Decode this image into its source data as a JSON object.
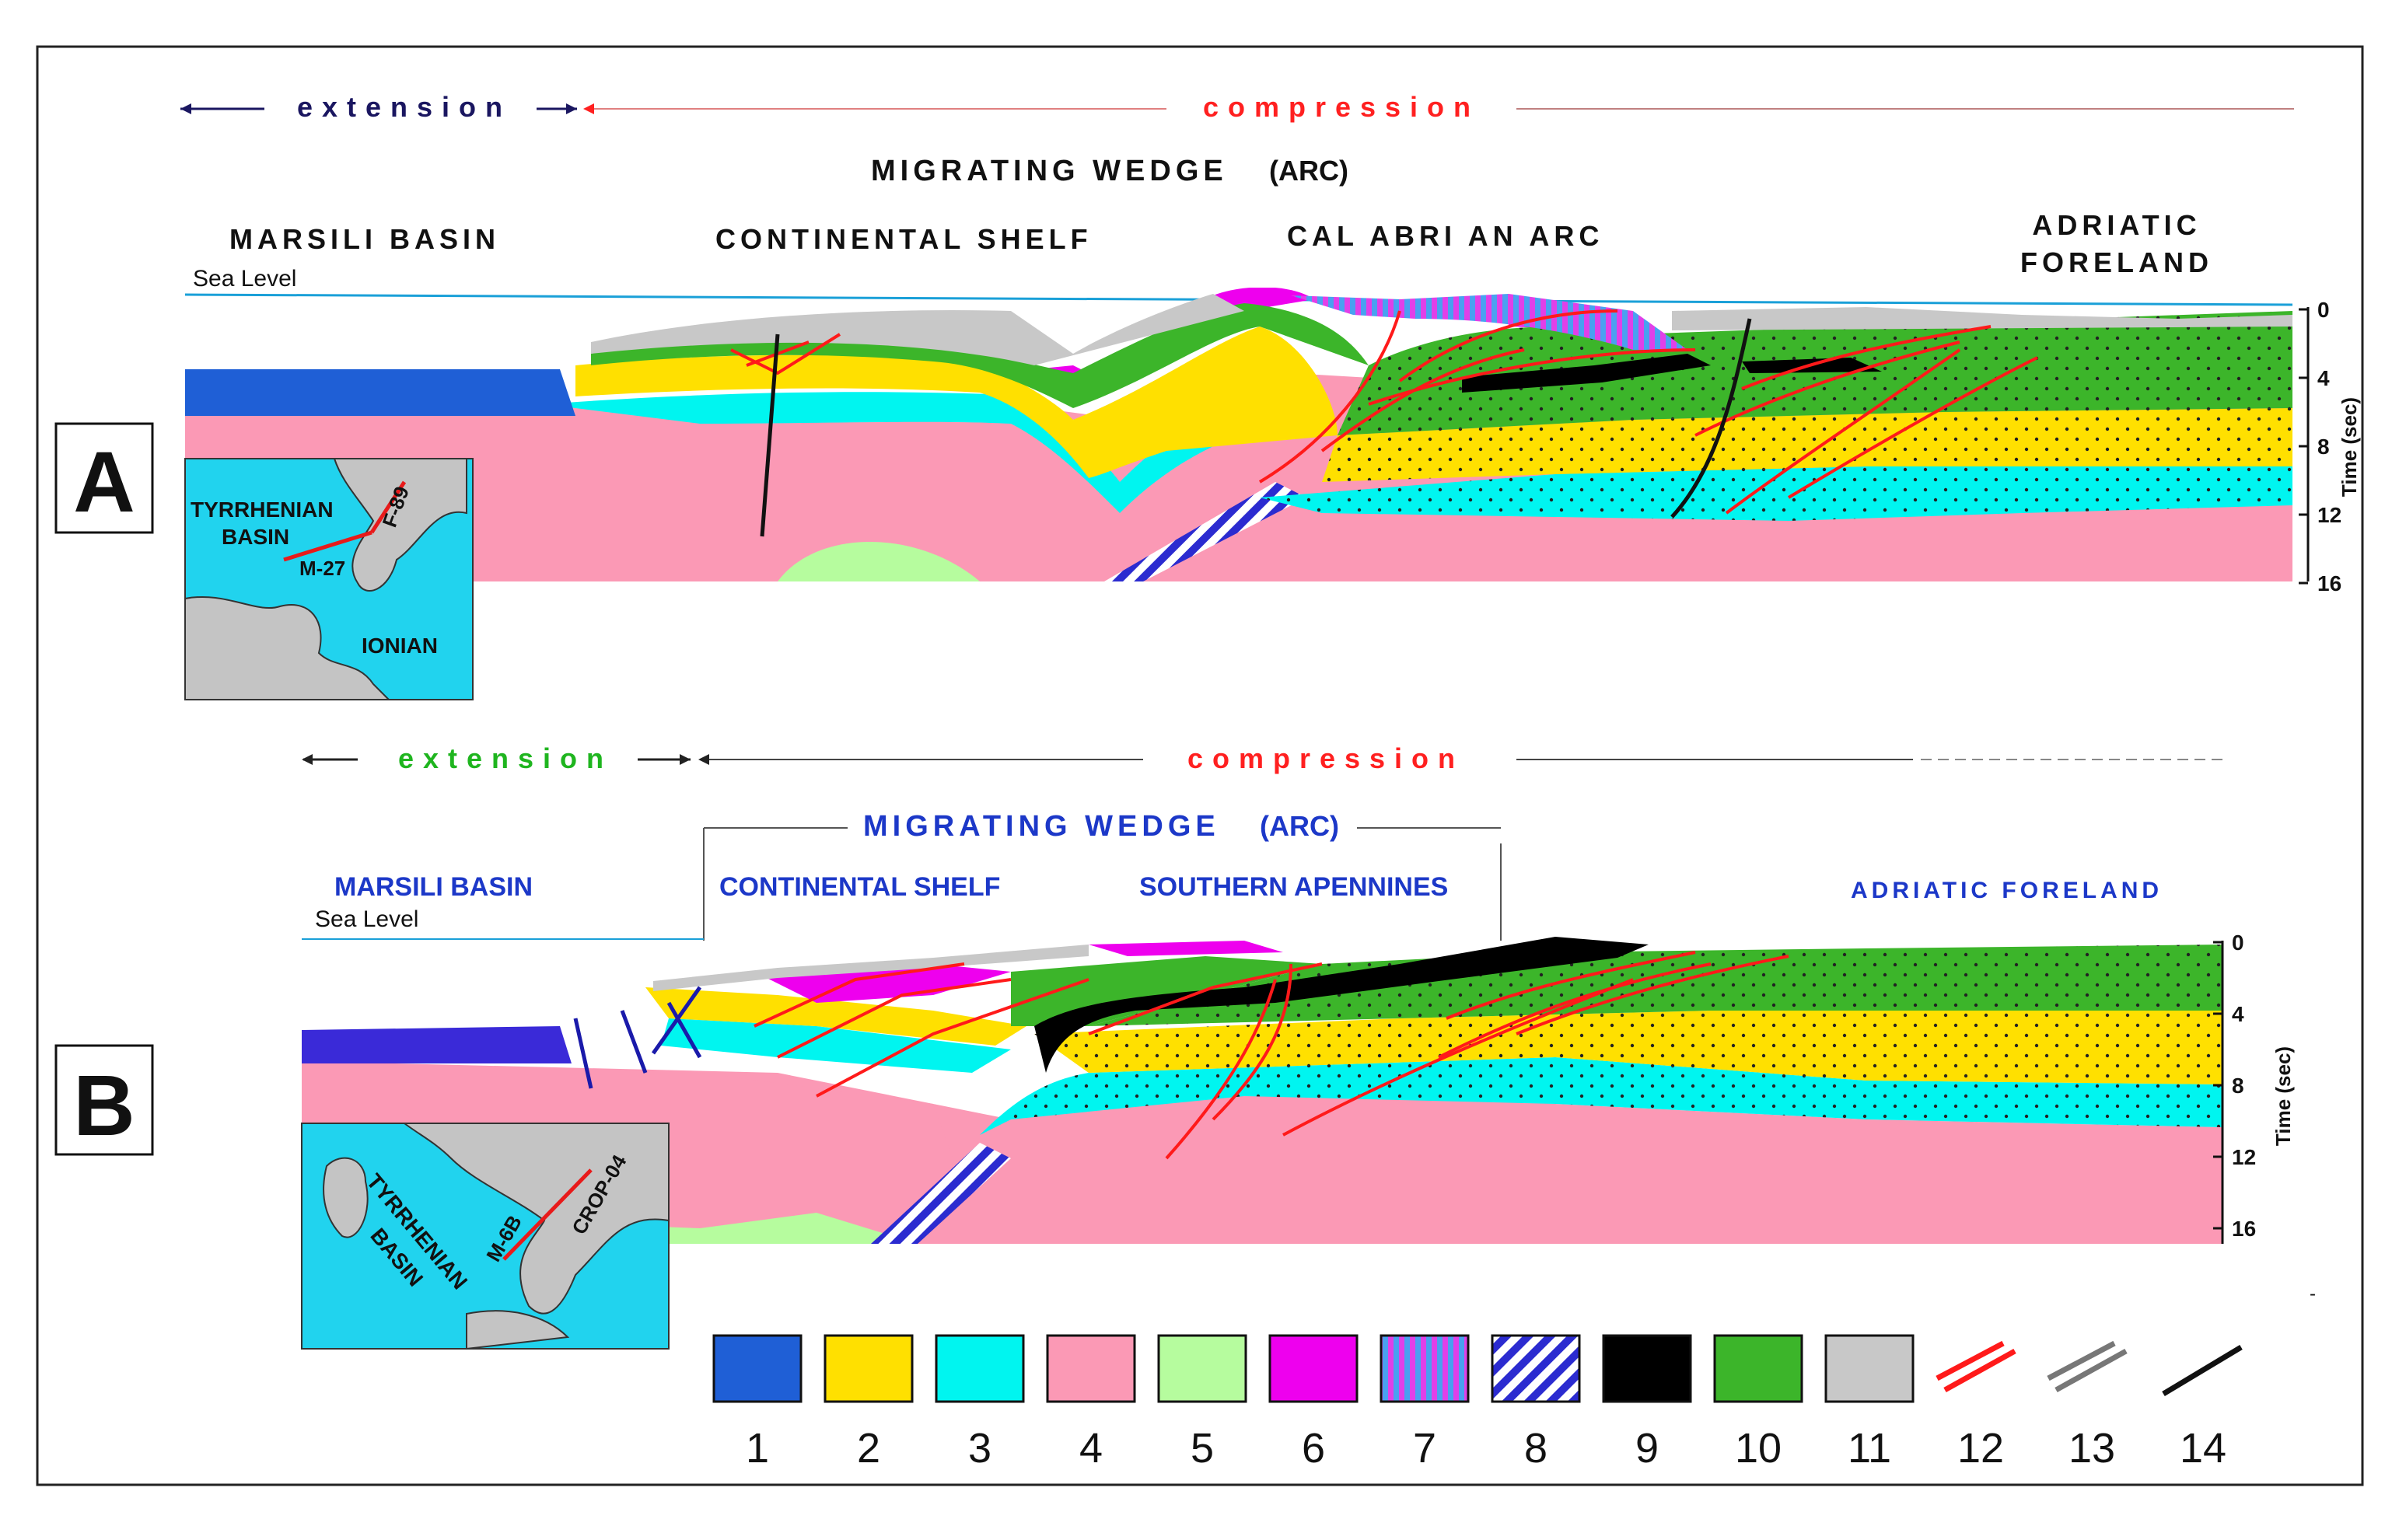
{
  "panel_a": {
    "label": "A",
    "extension": "extension",
    "compression": "compression",
    "wedge": "MIGRATING  WEDGE",
    "wedge_suffix": "(ARC)",
    "region_1": "MARSILI BASIN",
    "region_2": "CONTINENTAL SHELF",
    "region_3": "CAL ABRI AN ARC",
    "region_4_line1": "ADRIATIC",
    "region_4_line2": "FORELAND",
    "sea_level": "Sea Level",
    "axis_title": "Time (sec)",
    "ticks": [
      "0",
      "4",
      "8",
      "12",
      "16"
    ],
    "map": {
      "label_1": "TYRRHENIAN",
      "label_2": "BASIN",
      "label_3": "IONIAN",
      "line_1": "M-27",
      "line_2": "F-89"
    }
  },
  "panel_b": {
    "label": "B",
    "extension": "extension",
    "compression": "compression",
    "wedge": "MIGRATING  WEDGE",
    "wedge_suffix": "(ARC)",
    "region_1": "MARSILI  BASIN",
    "region_2": "CONTINENTAL  SHELF",
    "region_3": "SOUTHERN  APENNINES",
    "region_4": "ADRIATIC FORELAND",
    "sea_level": "Sea Level",
    "axis_title": "Time (sec)",
    "ticks": [
      "0",
      "4",
      "8",
      "12",
      "16"
    ],
    "map": {
      "label_1": "TYRRHENIAN",
      "label_2": "BASIN",
      "line_1": "M-6B",
      "line_2": "CROP-04"
    }
  },
  "legend": {
    "items": [
      {
        "num": "1",
        "color": "#1f5fd6"
      },
      {
        "num": "2",
        "color": "#ffe000"
      },
      {
        "num": "3",
        "color": "#00f5f0"
      },
      {
        "num": "4",
        "color": "#fb99b5"
      },
      {
        "num": "5",
        "color": "#b6fc9e"
      },
      {
        "num": "6",
        "color": "#ee00ee"
      },
      {
        "num": "7",
        "color": "#9b7fd8"
      },
      {
        "num": "8",
        "color": "#2727d0"
      },
      {
        "num": "9",
        "color": "#000000"
      },
      {
        "num": "10",
        "color": "#3cb52a"
      },
      {
        "num": "11",
        "color": "#c8c8c8"
      },
      {
        "num": "12",
        "color": "#ff1a1a"
      },
      {
        "num": "13",
        "color": "#777777"
      },
      {
        "num": "14",
        "color": "#111111"
      }
    ]
  },
  "colors": {
    "extension_a": "#1a1660",
    "extension_b": "#1fb51f",
    "compression": "#ff2020",
    "wedge_b": "#1c38c8",
    "map_sea": "#21d3ee",
    "map_land": "#c4c4c4"
  }
}
